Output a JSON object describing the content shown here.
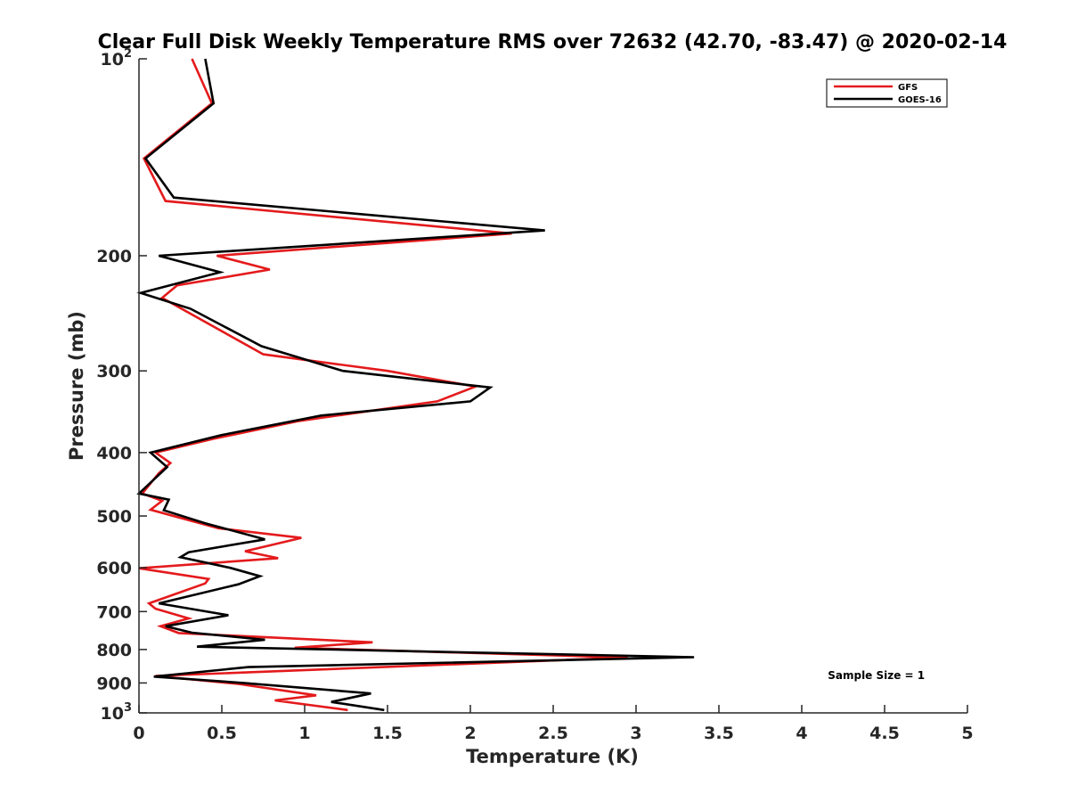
{
  "chart_data": {
    "type": "line",
    "title": "Clear Full Disk Weekly Temperature RMS over 72632 (42.70, -83.47) @ 2020-02-14",
    "xlabel": "Temperature (K)",
    "ylabel": "Pressure (mb)",
    "xlim": [
      0,
      5
    ],
    "ylim": [
      100,
      1000
    ],
    "y_scale": "log",
    "y_reversed": true,
    "grid": false,
    "legend_position": "top-right",
    "x_ticks": [
      {
        "v": 0,
        "label": "0"
      },
      {
        "v": 0.5,
        "label": "0.5"
      },
      {
        "v": 1,
        "label": "1"
      },
      {
        "v": 1.5,
        "label": "1.5"
      },
      {
        "v": 2,
        "label": "2"
      },
      {
        "v": 2.5,
        "label": "2.5"
      },
      {
        "v": 3,
        "label": "3"
      },
      {
        "v": 3.5,
        "label": "3.5"
      },
      {
        "v": 4,
        "label": "4"
      },
      {
        "v": 4.5,
        "label": "4.5"
      },
      {
        "v": 5,
        "label": "5"
      }
    ],
    "y_ticks": [
      {
        "v": 100,
        "base": "10",
        "exp": "2"
      },
      {
        "v": 200,
        "label": "200"
      },
      {
        "v": 300,
        "label": "300"
      },
      {
        "v": 400,
        "label": "400"
      },
      {
        "v": 500,
        "label": "500"
      },
      {
        "v": 600,
        "label": "600"
      },
      {
        "v": 700,
        "label": "700"
      },
      {
        "v": 800,
        "label": "800"
      },
      {
        "v": 900,
        "label": "900"
      },
      {
        "v": 1000,
        "base": "10",
        "exp": "3"
      }
    ],
    "series": [
      {
        "name": "GFS",
        "color": "#e41a1c",
        "points": [
          [
            0.32,
            100
          ],
          [
            0.44,
            117
          ],
          [
            0.03,
            142
          ],
          [
            0.16,
            165
          ],
          [
            2.25,
            185
          ],
          [
            0.47,
            200
          ],
          [
            0.79,
            210
          ],
          [
            0.23,
            222
          ],
          [
            0.14,
            232
          ],
          [
            0.75,
            283
          ],
          [
            1.5,
            300
          ],
          [
            2.03,
            317
          ],
          [
            1.8,
            334
          ],
          [
            0.96,
            358
          ],
          [
            0.45,
            381
          ],
          [
            0.1,
            400
          ],
          [
            0.19,
            415
          ],
          [
            0.12,
            430
          ],
          [
            0.02,
            462
          ],
          [
            0.14,
            474
          ],
          [
            0.07,
            489
          ],
          [
            0.48,
            522
          ],
          [
            0.98,
            540
          ],
          [
            0.64,
            566
          ],
          [
            0.84,
            580
          ],
          [
            0.0,
            601
          ],
          [
            0.42,
            624
          ],
          [
            0.4,
            634
          ],
          [
            0.06,
            680
          ],
          [
            0.1,
            693
          ],
          [
            0.3,
            717
          ],
          [
            0.13,
            737
          ],
          [
            0.24,
            755
          ],
          [
            1.41,
            780
          ],
          [
            0.94,
            795
          ],
          [
            2.95,
            823
          ],
          [
            0.1,
            878
          ],
          [
            0.6,
            903
          ],
          [
            1.07,
            940
          ],
          [
            0.82,
            957
          ],
          [
            1.26,
            990
          ]
        ]
      },
      {
        "name": "GOES-16",
        "color": "#000000",
        "points": [
          [
            0.4,
            100
          ],
          [
            0.45,
            117
          ],
          [
            0.04,
            142
          ],
          [
            0.21,
            163
          ],
          [
            2.45,
            183
          ],
          [
            0.12,
            200
          ],
          [
            0.49,
            212
          ],
          [
            0.01,
            228
          ],
          [
            0.31,
            241
          ],
          [
            0.74,
            275
          ],
          [
            1.23,
            300
          ],
          [
            2.12,
            318
          ],
          [
            2.0,
            334
          ],
          [
            1.1,
            351
          ],
          [
            0.5,
            376
          ],
          [
            0.07,
            400
          ],
          [
            0.17,
            421
          ],
          [
            0.0,
            462
          ],
          [
            0.18,
            472
          ],
          [
            0.15,
            490
          ],
          [
            0.4,
            513
          ],
          [
            0.76,
            543
          ],
          [
            0.3,
            568
          ],
          [
            0.25,
            578
          ],
          [
            0.55,
            600
          ],
          [
            0.73,
            618
          ],
          [
            0.6,
            636
          ],
          [
            0.12,
            680
          ],
          [
            0.54,
            709
          ],
          [
            0.16,
            737
          ],
          [
            0.32,
            754
          ],
          [
            0.76,
            773
          ],
          [
            0.35,
            792
          ],
          [
            3.35,
            822
          ],
          [
            0.66,
            851
          ],
          [
            0.09,
            880
          ],
          [
            0.63,
            900
          ],
          [
            1.4,
            934
          ],
          [
            1.16,
            962
          ],
          [
            1.48,
            990
          ]
        ]
      }
    ],
    "annotations": [
      {
        "text": "Sample Size = 1",
        "x": 4.45,
        "y": 877
      }
    ]
  }
}
